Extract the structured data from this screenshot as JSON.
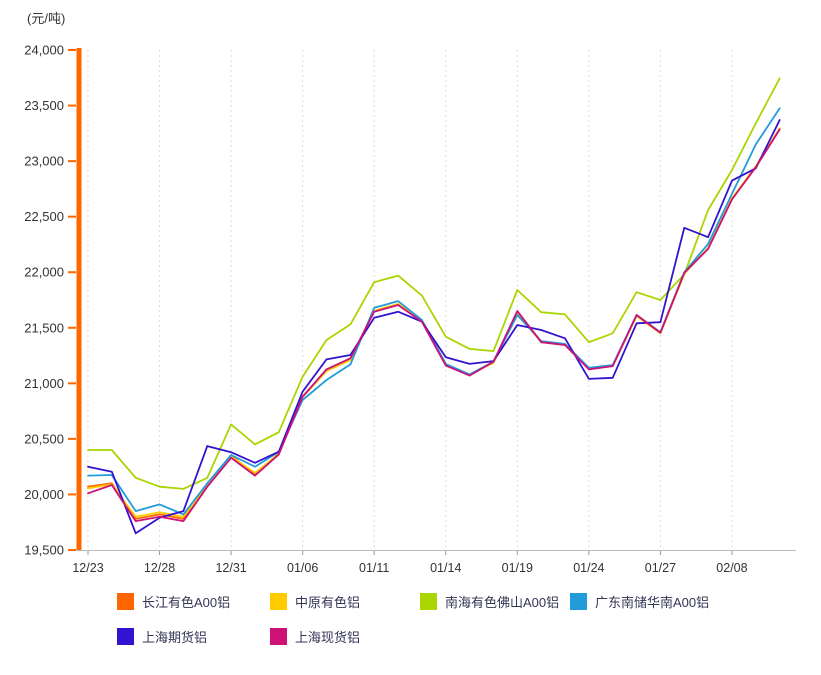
{
  "unit_label": "(元/吨)",
  "colors": {
    "y_axis": "#FF6600",
    "x_axis": "#BBBBBB",
    "x_tick": "#999999",
    "grid": "#DDDDDD",
    "axis_text": "#333333",
    "legend_text": "#333355",
    "background": "#FFFFFF"
  },
  "chart_data": {
    "type": "line",
    "title": "",
    "ylabel": "(元/吨)",
    "xlabel": "",
    "grid": "vertical-dashed",
    "legend_position": "bottom",
    "ylim": [
      19500,
      24000
    ],
    "y_step": 500,
    "x_tick_labels": [
      "12/23",
      "12/28",
      "12/31",
      "01/06",
      "01/11",
      "01/14",
      "01/19",
      "01/24",
      "01/27",
      "02/08"
    ],
    "x_tick_every_n_points": 3,
    "points_per_series": 30,
    "series": [
      {
        "name": "长江有色A00铝",
        "color": "#FF6600",
        "values": [
          20070,
          20100,
          19780,
          19820,
          19780,
          20090,
          20350,
          20180,
          20370,
          20880,
          21120,
          21220,
          21650,
          21710,
          21560,
          21165,
          21075,
          21190,
          21645,
          21375,
          21350,
          21130,
          21160,
          21610,
          21455,
          21990,
          22215,
          22660,
          22950,
          23290
        ]
      },
      {
        "name": "中原有色铝",
        "color": "#FFCC00",
        "values": [
          20055,
          20090,
          19800,
          19840,
          19800,
          20080,
          20340,
          20195,
          20365,
          20875,
          21110,
          21210,
          21655,
          21715,
          21565,
          21170,
          21080,
          21185,
          21640,
          21370,
          21345,
          21135,
          21155,
          21605,
          21450,
          21985,
          22220,
          22665,
          22955,
          23295
        ]
      },
      {
        "name": "南海有色佛山A00铝",
        "color": "#AAD500",
        "values": [
          20400,
          20400,
          20150,
          20070,
          20050,
          20150,
          20630,
          20450,
          20560,
          21060,
          21390,
          21530,
          21910,
          21970,
          21790,
          21420,
          21310,
          21290,
          21840,
          21640,
          21620,
          21370,
          21450,
          21820,
          21750,
          21980,
          22560,
          22920,
          23340,
          23745
        ]
      },
      {
        "name": "广东南储华南A00铝",
        "color": "#229BDB",
        "values": [
          20170,
          20175,
          19850,
          19910,
          19820,
          20100,
          20355,
          20250,
          20385,
          20850,
          21030,
          21170,
          21680,
          21740,
          21570,
          21175,
          21080,
          21195,
          21615,
          21380,
          21355,
          21140,
          21165,
          21615,
          21460,
          22000,
          22255,
          22705,
          23150,
          23475
        ]
      },
      {
        "name": "上海期货铝",
        "color": "#3313CF",
        "values": [
          20250,
          20205,
          19650,
          19790,
          19850,
          20435,
          20380,
          20285,
          20385,
          20925,
          21215,
          21255,
          21590,
          21645,
          21555,
          21235,
          21175,
          21200,
          21525,
          21480,
          21405,
          21040,
          21050,
          21540,
          21550,
          22400,
          22315,
          22825,
          22935,
          23370
        ]
      },
      {
        "name": "上海现货铝",
        "color": "#CC1177",
        "values": [
          20010,
          20085,
          19760,
          19800,
          19760,
          20070,
          20330,
          20170,
          20360,
          20880,
          21125,
          21225,
          21645,
          21705,
          21555,
          21160,
          21070,
          21195,
          21650,
          21370,
          21345,
          21125,
          21155,
          21615,
          21455,
          21995,
          22210,
          22655,
          22945,
          23285
        ]
      }
    ]
  }
}
